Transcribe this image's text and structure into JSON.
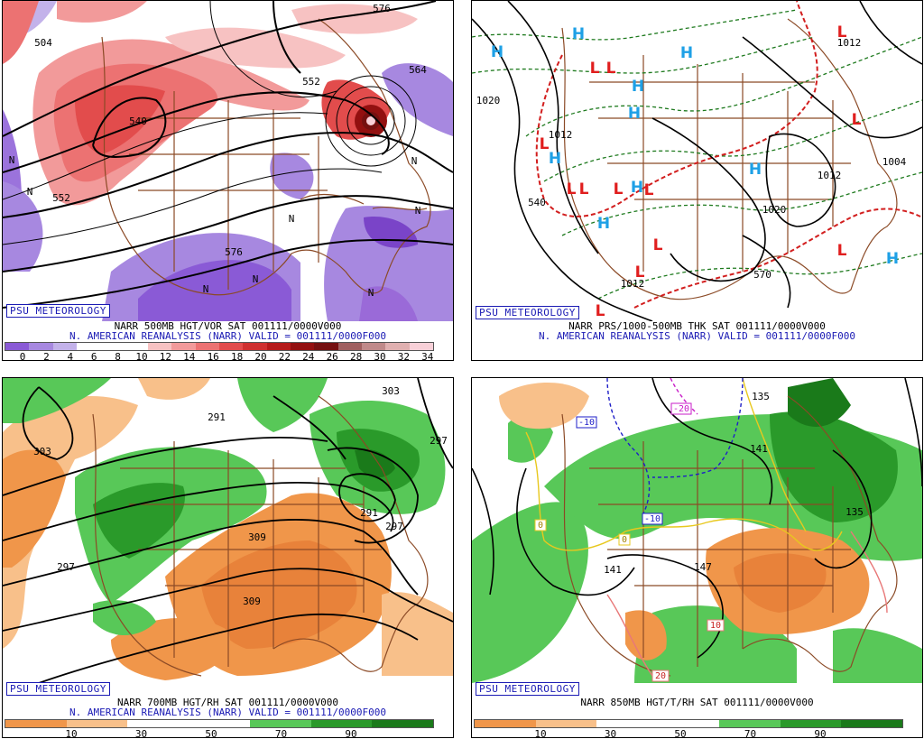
{
  "brand": "PSU METEOROLOGY",
  "panels": [
    {
      "id": "500mb",
      "title": "NARR 500MB HGT/VOR SAT 001111/0000V000",
      "subtitle": "N. AMERICAN REANALYSIS (NARR) VALID = 001111/0000F000",
      "contour_labels": [
        "504",
        "552",
        "540",
        "552",
        "564",
        "576",
        "576"
      ],
      "center_labels": [
        "N",
        "N",
        "N",
        "N",
        "N",
        "N",
        "N",
        "N"
      ],
      "colorbar_ticks": [
        "0",
        "2",
        "4",
        "6",
        "8",
        "10",
        "12",
        "14",
        "16",
        "18",
        "20",
        "22",
        "24",
        "26",
        "28",
        "30",
        "32",
        "34"
      ],
      "colorbar_colors": [
        "#8a5ad6",
        "#a788e0",
        "#c3b2ea",
        "#ffffff",
        "#ffffff",
        "#ffffff",
        "#f7c2c2",
        "#f29a9a",
        "#ec7272",
        "#e24c4c",
        "#cf3030",
        "#b51a1a",
        "#931010",
        "#751010",
        "#a06060",
        "#c08a8a",
        "#e0b0b0",
        "#f8d0d8"
      ]
    },
    {
      "id": "prs-thk",
      "title": "NARR PRS/1000-500MB THK SAT 001111/0000V000",
      "subtitle": "N. AMERICAN REANALYSIS (NARR) VALID = 001111/0000F000",
      "contour_labels": [
        "1020",
        "1012",
        "540",
        "1020",
        "1012",
        "1004",
        "570",
        "1012",
        "1012"
      ],
      "highs": [
        "H",
        "H",
        "H",
        "H",
        "H",
        "H",
        "H",
        "H",
        "H",
        "H"
      ],
      "lows": [
        "L",
        "L",
        "L",
        "L",
        "L",
        "L",
        "L",
        "L",
        "L",
        "L",
        "L",
        "L",
        "L"
      ]
    },
    {
      "id": "700mb",
      "title": "NARR 700MB HGT/RH SAT 001111/0000V000",
      "subtitle": "N. AMERICAN REANALYSIS (NARR) VALID = 001111/0000F000",
      "contour_labels": [
        "303",
        "291",
        "297",
        "303",
        "291",
        "297",
        "297",
        "309",
        "309"
      ],
      "colorbar_ticks": [
        "10",
        "30",
        "50",
        "70",
        "90"
      ],
      "colorbar_colors": [
        "#f0964a",
        "#f8c08a",
        "#ffffff",
        "#ffffff",
        "#58c858",
        "#2a9a2a",
        "#1a7a1a"
      ]
    },
    {
      "id": "850mb",
      "title": "NARR 850MB HGT/T/RH SAT 001111/0000V000",
      "contour_labels": [
        "135",
        "141",
        "135",
        "141",
        "147",
        "10",
        "20",
        "0",
        "0",
        "-10",
        "-10",
        "-20"
      ],
      "colorbar_ticks": [
        "10",
        "30",
        "50",
        "70",
        "90"
      ],
      "colorbar_colors": [
        "#f0964a",
        "#f8c08a",
        "#ffffff",
        "#ffffff",
        "#58c858",
        "#2a9a2a",
        "#1a7a1a"
      ]
    }
  ]
}
